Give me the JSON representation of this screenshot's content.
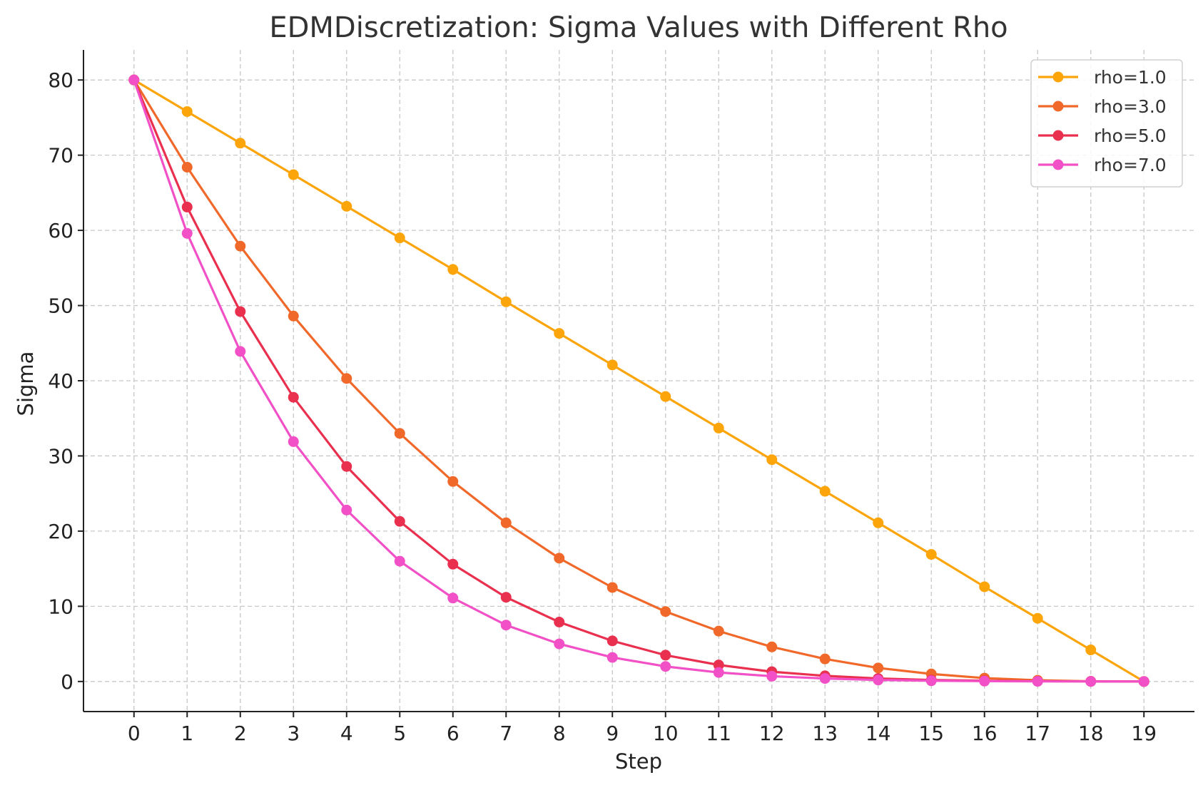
{
  "chart_data": {
    "type": "line",
    "title": "EDMDiscretization: Sigma Values with Different Rho",
    "xlabel": "Step",
    "ylabel": "Sigma",
    "xlim": [
      -0.95,
      19.95
    ],
    "ylim": [
      -4,
      84
    ],
    "x": [
      0,
      1,
      2,
      3,
      4,
      5,
      6,
      7,
      8,
      9,
      10,
      11,
      12,
      13,
      14,
      15,
      16,
      17,
      18,
      19
    ],
    "yticks": [
      0,
      10,
      20,
      30,
      40,
      50,
      60,
      70,
      80
    ],
    "grid": true,
    "legend_position": "top-right",
    "series": [
      {
        "name": "rho=1.0",
        "color": "#FCA50A",
        "values": [
          80.0,
          75.8,
          71.6,
          67.4,
          63.2,
          59.0,
          54.8,
          50.5,
          46.3,
          42.1,
          37.9,
          33.7,
          29.5,
          25.3,
          21.1,
          16.9,
          12.6,
          8.4,
          4.2,
          0.0
        ]
      },
      {
        "name": "rho=3.0",
        "color": "#F1692A",
        "values": [
          80.0,
          68.4,
          57.9,
          48.6,
          40.3,
          33.0,
          26.6,
          21.1,
          16.4,
          12.5,
          9.3,
          6.7,
          4.6,
          3.0,
          1.8,
          1.0,
          0.45,
          0.16,
          0.03,
          0.0
        ]
      },
      {
        "name": "rho=5.0",
        "color": "#E9304F",
        "values": [
          80.0,
          63.1,
          49.2,
          37.8,
          28.6,
          21.3,
          15.6,
          11.2,
          7.9,
          5.4,
          3.5,
          2.2,
          1.3,
          0.75,
          0.4,
          0.2,
          0.1,
          0.04,
          0.01,
          0.0
        ]
      },
      {
        "name": "rho=7.0",
        "color": "#F250C6",
        "values": [
          80.0,
          59.6,
          43.9,
          31.9,
          22.8,
          16.0,
          11.1,
          7.5,
          5.0,
          3.2,
          2.0,
          1.2,
          0.7,
          0.4,
          0.2,
          0.1,
          0.05,
          0.02,
          0.01,
          0.0
        ]
      }
    ]
  }
}
